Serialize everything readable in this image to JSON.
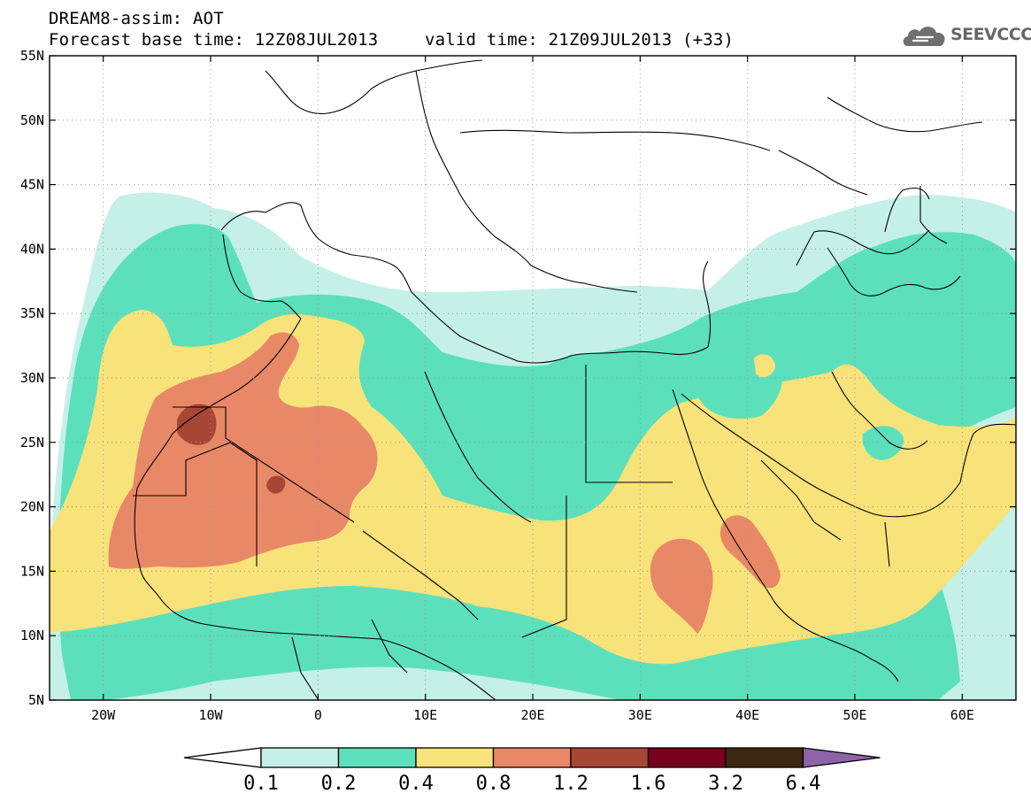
{
  "header": {
    "model_line": "DREAM8-assim: AOT",
    "base_time": "Forecast base time: 12Z08JUL2013",
    "valid_time": "valid time: 21Z09JUL2013 (+33)"
  },
  "logo": {
    "text": "SEEVCCC",
    "icon": "cloud-icon"
  },
  "map": {
    "lon_min": -25,
    "lon_max": 65,
    "lat_min": 5,
    "lat_max": 55,
    "lat_ticks": [
      {
        "value": 55,
        "label": "55N"
      },
      {
        "value": 50,
        "label": "50N"
      },
      {
        "value": 45,
        "label": "45N"
      },
      {
        "value": 40,
        "label": "40N"
      },
      {
        "value": 35,
        "label": "35N"
      },
      {
        "value": 30,
        "label": "30N"
      },
      {
        "value": 25,
        "label": "25N"
      },
      {
        "value": 20,
        "label": "20N"
      },
      {
        "value": 15,
        "label": "15N"
      },
      {
        "value": 10,
        "label": "10N"
      },
      {
        "value": 5,
        "label": "5N"
      }
    ],
    "lon_ticks": [
      {
        "value": -20,
        "label": "20W"
      },
      {
        "value": -10,
        "label": "10W"
      },
      {
        "value": 0,
        "label": "0"
      },
      {
        "value": 10,
        "label": "10E"
      },
      {
        "value": 20,
        "label": "20E"
      },
      {
        "value": 30,
        "label": "30E"
      },
      {
        "value": 40,
        "label": "40E"
      },
      {
        "value": 50,
        "label": "50E"
      },
      {
        "value": 60,
        "label": "60E"
      }
    ],
    "grid": true
  },
  "colorbar": {
    "levels": [
      "0.1",
      "0.2",
      "0.4",
      "0.8",
      "1.2",
      "1.6",
      "3.2",
      "6.4"
    ],
    "colors": [
      "#ffffff",
      "#c4f0e8",
      "#5ce0bc",
      "#f8e27a",
      "#e88866",
      "#a84636",
      "#78001e",
      "#3c2812",
      "#8e64a8"
    ]
  },
  "colors": {
    "land": "#ffffff",
    "aot_01_02": "#c4f0e8",
    "aot_02_04": "#5ce0bc",
    "aot_04_08": "#f8e27a",
    "aot_08_12": "#e88866",
    "aot_12_16": "#a84636",
    "coast": "#000000"
  }
}
